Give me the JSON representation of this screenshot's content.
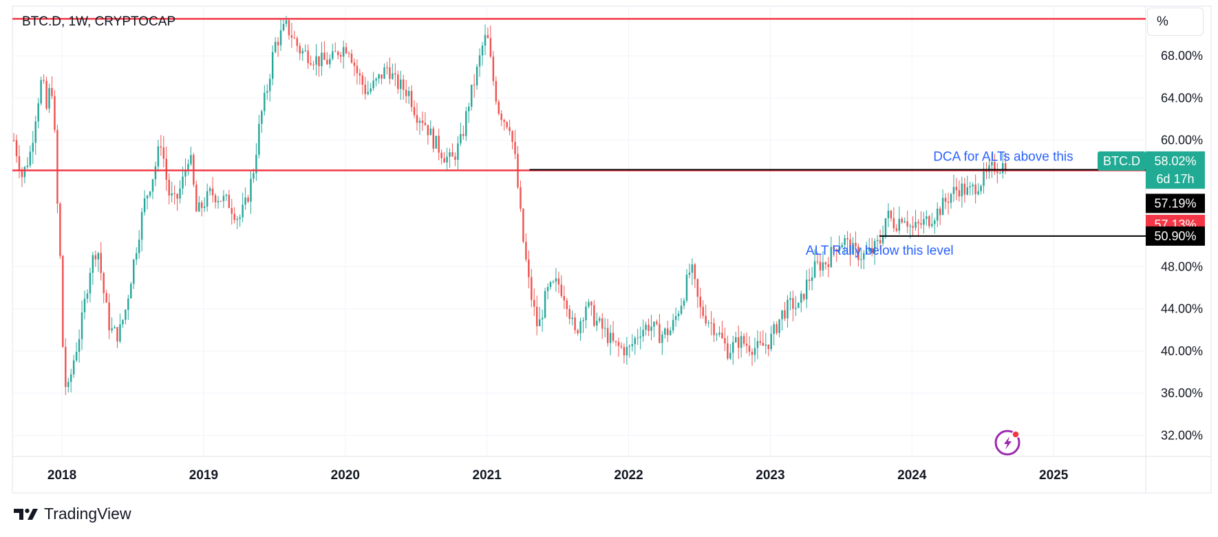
{
  "header": {
    "symbol_label": "BTC.D, 1W, CRYPTOCAP"
  },
  "scale_toggle": {
    "label": "%"
  },
  "footer": {
    "brand": "TradingView"
  },
  "colors": {
    "up": "#26a69a",
    "down": "#ef5350",
    "level_line": "#f23645",
    "annotation_text": "#2962ff",
    "badge_green": "#22ab94",
    "badge_red": "#f23645",
    "badge_black": "#000000"
  },
  "icons": {
    "flash": "lightning-bolt-icon"
  },
  "chart_data": {
    "type": "candlestick",
    "title": "BTC.D, 1W, CRYPTOCAP",
    "x_tick_labels": [
      "2018",
      "2019",
      "2020",
      "2021",
      "2022",
      "2023",
      "2024",
      "2025"
    ],
    "y_tick_labels": [
      "32.00%",
      "36.00%",
      "40.00%",
      "44.00%",
      "48.00%",
      "60.00%",
      "64.00%",
      "68.00%"
    ],
    "y_ticks": [
      32,
      36,
      40,
      44,
      48,
      60,
      64,
      68
    ],
    "ylim": [
      30,
      72.7
    ],
    "xlim": [
      2017.65,
      2025.65
    ],
    "grid": true,
    "path_points": [
      [
        2017.66,
        60
      ],
      [
        2017.72,
        56.5
      ],
      [
        2017.78,
        59
      ],
      [
        2017.82,
        63
      ],
      [
        2017.86,
        66
      ],
      [
        2017.9,
        62
      ],
      [
        2017.92,
        67
      ],
      [
        2017.95,
        60
      ],
      [
        2017.97,
        53
      ],
      [
        2017.99,
        48
      ],
      [
        2018.0,
        42
      ],
      [
        2018.02,
        37
      ],
      [
        2018.04,
        36
      ],
      [
        2018.08,
        39
      ],
      [
        2018.13,
        42
      ],
      [
        2018.2,
        48
      ],
      [
        2018.25,
        50
      ],
      [
        2018.3,
        45
      ],
      [
        2018.34,
        42
      ],
      [
        2018.4,
        41.5
      ],
      [
        2018.45,
        44
      ],
      [
        2018.5,
        48
      ],
      [
        2018.58,
        54
      ],
      [
        2018.65,
        57
      ],
      [
        2018.7,
        60
      ],
      [
        2018.75,
        55
      ],
      [
        2018.8,
        54
      ],
      [
        2018.85,
        56
      ],
      [
        2018.9,
        59
      ],
      [
        2018.95,
        53
      ],
      [
        2019.05,
        55
      ],
      [
        2019.12,
        54.5
      ],
      [
        2019.18,
        54
      ],
      [
        2019.25,
        52.5
      ],
      [
        2019.3,
        54
      ],
      [
        2019.35,
        57
      ],
      [
        2019.4,
        62
      ],
      [
        2019.45,
        65
      ],
      [
        2019.5,
        69
      ],
      [
        2019.58,
        70.8
      ],
      [
        2019.62,
        70
      ],
      [
        2019.68,
        68.5
      ],
      [
        2019.75,
        68
      ],
      [
        2019.82,
        67.5
      ],
      [
        2019.9,
        67.5
      ],
      [
        2019.95,
        68.5
      ],
      [
        2020.02,
        69
      ],
      [
        2020.08,
        66.5
      ],
      [
        2020.15,
        64.5
      ],
      [
        2020.22,
        65.5
      ],
      [
        2020.3,
        67
      ],
      [
        2020.35,
        65.5
      ],
      [
        2020.4,
        65
      ],
      [
        2020.45,
        64.5
      ],
      [
        2020.5,
        62.5
      ],
      [
        2020.55,
        62
      ],
      [
        2020.62,
        60
      ],
      [
        2020.7,
        58.5
      ],
      [
        2020.75,
        58
      ],
      [
        2020.82,
        60
      ],
      [
        2020.87,
        63.5
      ],
      [
        2020.92,
        66
      ],
      [
        2020.97,
        69
      ],
      [
        2021.0,
        70
      ],
      [
        2021.04,
        66
      ],
      [
        2021.08,
        63
      ],
      [
        2021.12,
        62
      ],
      [
        2021.16,
        61.5
      ],
      [
        2021.2,
        58
      ],
      [
        2021.25,
        51
      ],
      [
        2021.3,
        46
      ],
      [
        2021.36,
        42
      ],
      [
        2021.42,
        45.5
      ],
      [
        2021.5,
        46.5
      ],
      [
        2021.56,
        45
      ],
      [
        2021.62,
        41.5
      ],
      [
        2021.7,
        44.5
      ],
      [
        2021.76,
        43
      ],
      [
        2021.82,
        42
      ],
      [
        2021.9,
        40.5
      ],
      [
        2022.0,
        40
      ],
      [
        2022.08,
        42
      ],
      [
        2022.15,
        42.5
      ],
      [
        2022.22,
        41.5
      ],
      [
        2022.3,
        42
      ],
      [
        2022.38,
        45
      ],
      [
        2022.44,
        48
      ],
      [
        2022.5,
        44
      ],
      [
        2022.56,
        43
      ],
      [
        2022.62,
        42
      ],
      [
        2022.7,
        40
      ],
      [
        2022.78,
        41
      ],
      [
        2022.85,
        40.5
      ],
      [
        2022.92,
        40.2
      ],
      [
        2023.0,
        41
      ],
      [
        2023.08,
        43.5
      ],
      [
        2023.15,
        44.5
      ],
      [
        2023.2,
        44
      ],
      [
        2023.26,
        46.5
      ],
      [
        2023.32,
        48
      ],
      [
        2023.4,
        48.5
      ],
      [
        2023.46,
        50
      ],
      [
        2023.52,
        50.5
      ],
      [
        2023.58,
        49.5
      ],
      [
        2023.65,
        49
      ],
      [
        2023.72,
        49.5
      ],
      [
        2023.78,
        50.5
      ],
      [
        2023.82,
        53
      ],
      [
        2023.88,
        52
      ],
      [
        2023.94,
        53
      ],
      [
        2024.0,
        51.5
      ],
      [
        2024.06,
        52
      ],
      [
        2024.12,
        52.5
      ],
      [
        2024.2,
        53.5
      ],
      [
        2024.28,
        55
      ],
      [
        2024.34,
        55.5
      ],
      [
        2024.4,
        55
      ],
      [
        2024.46,
        55.8
      ],
      [
        2024.52,
        56.5
      ],
      [
        2024.58,
        57.5
      ],
      [
        2024.63,
        57.5
      ],
      [
        2024.67,
        58.02
      ]
    ],
    "horizontal_levels": [
      {
        "price": 71.5,
        "color": "#f23645"
      },
      {
        "price": 57.13,
        "color": "#f23645"
      },
      {
        "price": 57.19,
        "color": "#000000",
        "from": 2021.3
      },
      {
        "price": 50.9,
        "color": "#000000",
        "from": 2023.77
      }
    ],
    "annotations": [
      {
        "text": "DCA for ALTs above this",
        "price": 58.5,
        "x": 2024.15
      },
      {
        "text": "ALT Rally below this level",
        "price": 49.6,
        "x": 2023.25
      }
    ],
    "price_badges": [
      {
        "text": "BTC.D",
        "price": 58.02,
        "color": "#22ab94"
      },
      {
        "text": "58.02%",
        "price": 58.02,
        "color": "#22ab94"
      },
      {
        "text": "6d 17h",
        "price": 56.3,
        "color": "#22ab94"
      },
      {
        "text": "57.19%",
        "price": 54.0,
        "color": "#000000"
      },
      {
        "text": "57.13%",
        "price": 52.0,
        "color": "#f23645"
      },
      {
        "text": "50.90%",
        "price": 50.9,
        "color": "#000000"
      }
    ]
  }
}
